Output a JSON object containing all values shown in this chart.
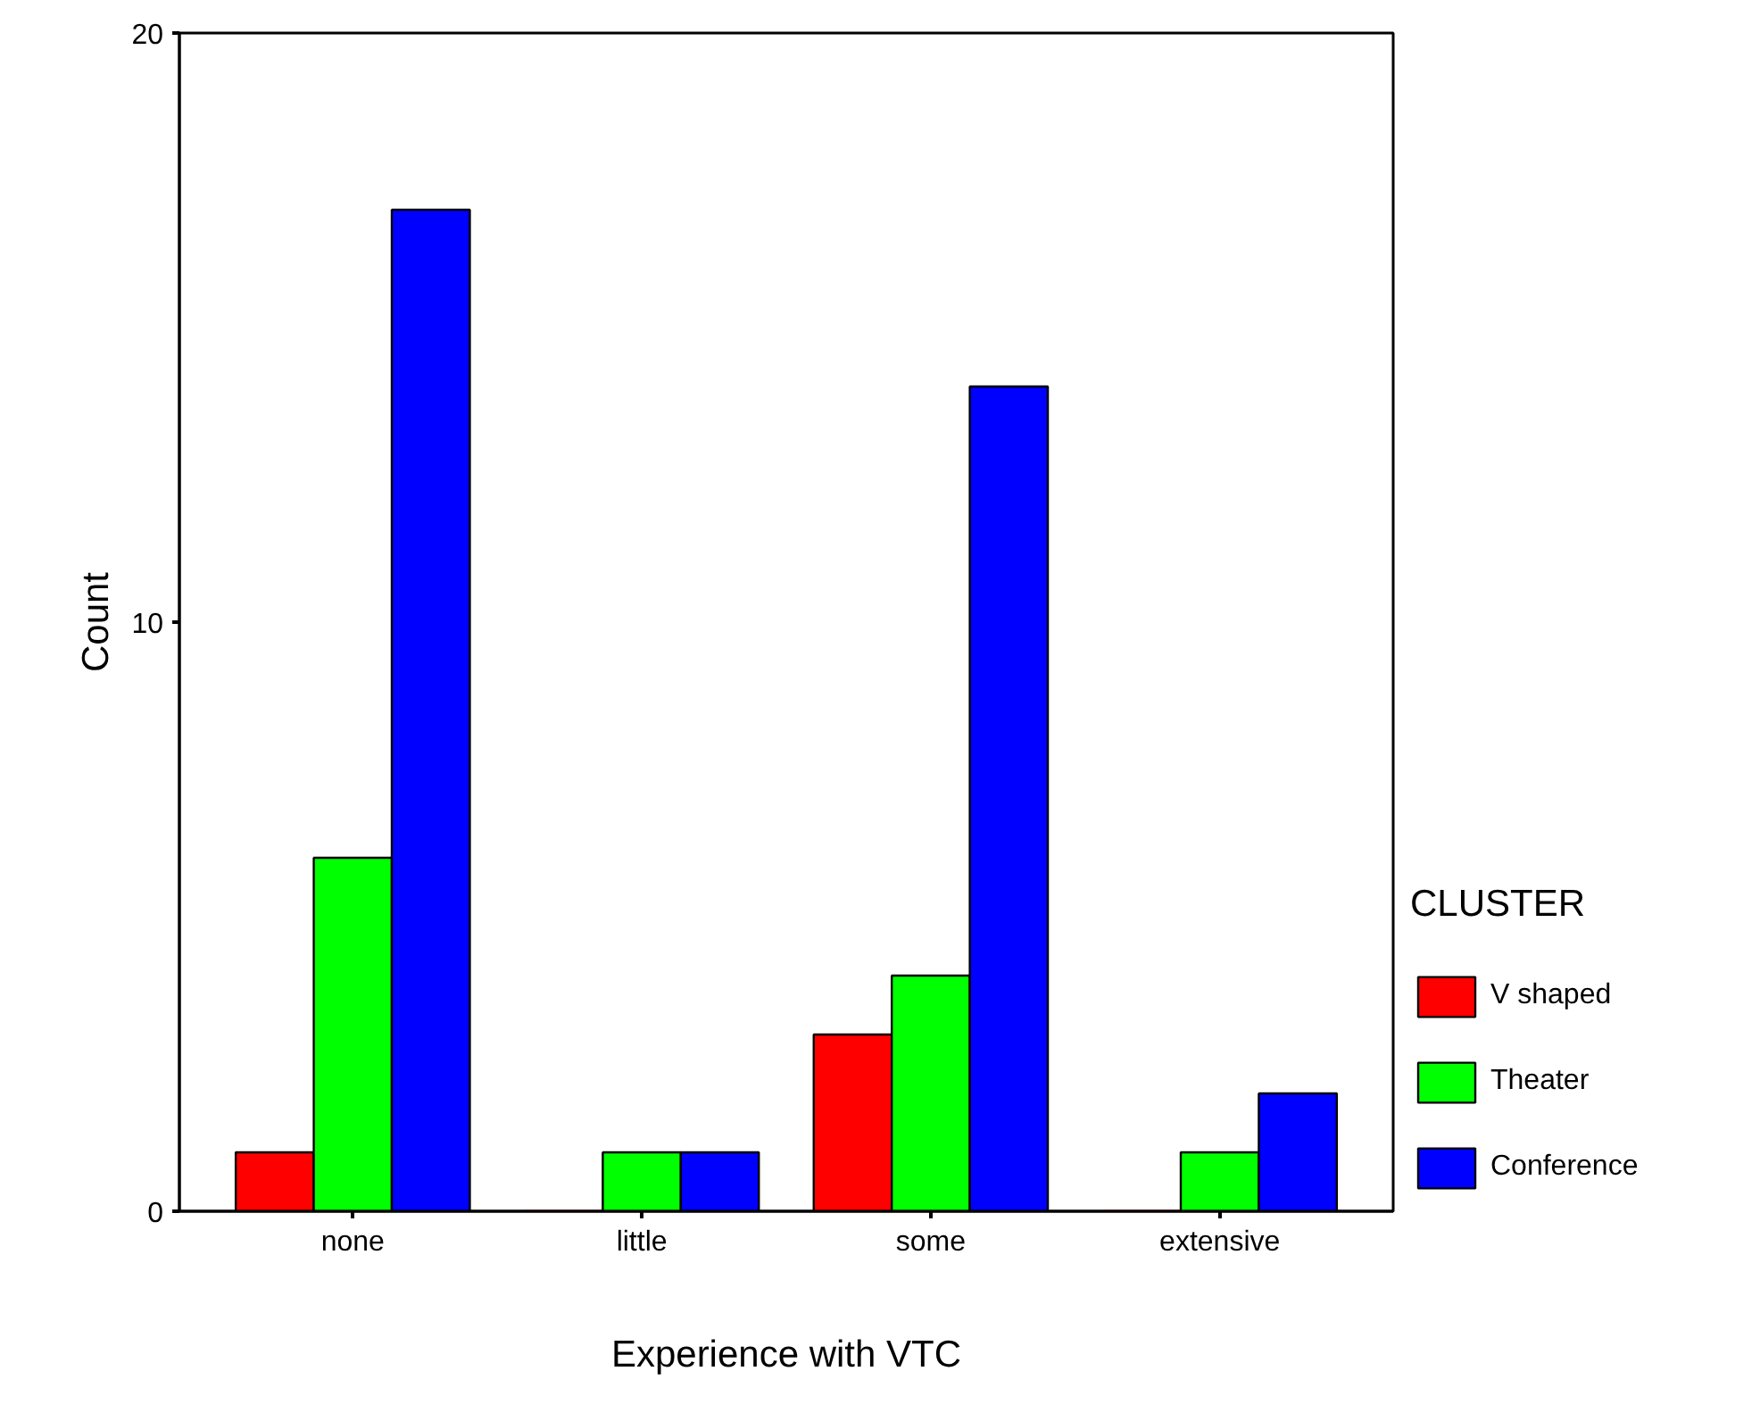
{
  "chart_data": {
    "type": "bar",
    "xlabel": "Experience with VTC",
    "ylabel": "Count",
    "legend_title": "CLUSTER",
    "categories": [
      "none",
      "little",
      "some",
      "extensive"
    ],
    "series": [
      {
        "name": "V shaped",
        "color": "#ff0000",
        "values": [
          1,
          0,
          3,
          0
        ]
      },
      {
        "name": "Theater",
        "color": "#00ff00",
        "values": [
          6,
          1,
          4,
          1
        ]
      },
      {
        "name": "Conference",
        "color": "#0000ff",
        "values": [
          17,
          1,
          14,
          2
        ]
      }
    ],
    "ylim": [
      0,
      20
    ],
    "yticks": [
      0,
      10,
      20
    ],
    "grid": false,
    "legend": "right"
  }
}
